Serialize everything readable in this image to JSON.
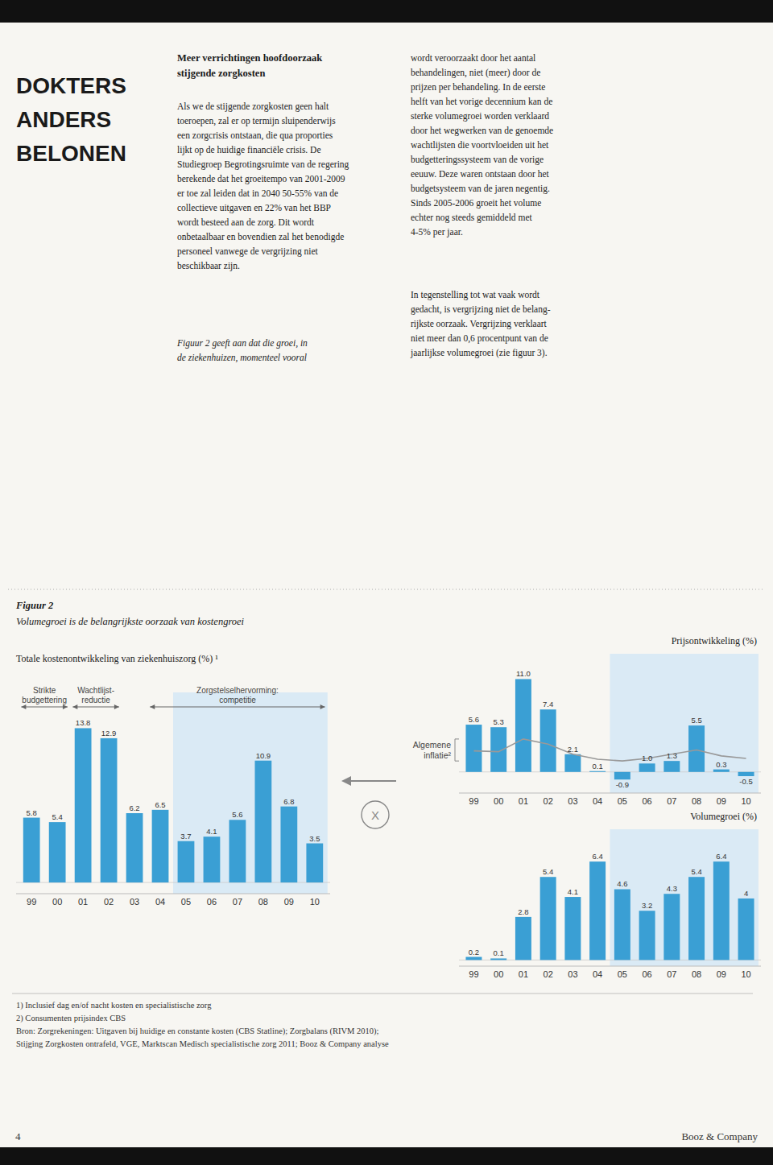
{
  "page": {
    "title": [
      "DOKTERS",
      "ANDERS",
      "BELONEN"
    ],
    "heading": "Meer verrichtingen hoofdoorzaak\nstijgende zorgkosten",
    "paragraphs": [
      "Als we de stijgende zorgkosten geen halt\ntoeroepen, zal er op termijn sluipenderwijs\neen zorgcrisis ontstaan, die qua proporties\nlijkt op de huidige financiële crisis. De\nStudiegroep Begrotingsruimte van de regering\nberekende dat het groeitempo van 2001-2009\ner toe zal leiden dat in 2040 50-55% van de\ncollectieve uitgaven en 22% van het BBP\nwordt besteed aan de zorg. Dit wordt\nonbetaalbaar en bovendien zal het benodigde\npersoneel vanwege de vergrijzing niet\nbeschikbaar zijn.",
      "Figuur 2 geeft aan dat die groei, in\nde ziekenhuizen, momenteel vooral",
      "wordt veroorzaakt door het aantal\nbehandelingen, niet (meer) door de\nprijzen per behandeling. In de eerste\nhelft van het vorige decennium kan de\nsterke volumegroei worden verklaard\ndoor het wegwerken van de genoemde\nwachtlijsten die voortvloeiden uit het\nbudgetteringssysteem van de vorige\neeuuw. Deze waren ontstaan door het\nbudgetsysteem van de jaren negentig.\nSinds 2005-2006 groeit het volume\nechter nog steeds gemiddeld met\n4-5% per jaar.",
      "In tegenstelling tot wat vaak wordt\ngedacht, is vergrijzing niet de belang-\nrijkste oorzaak. Vergrijzing verklaart\nniet meer dan 0,6 procentpunt van de\njaarlijkse volumegroei (zie figuur 3)."
    ],
    "figure_label": "Figuur 2",
    "subtitle": "Volumegroei is de belangrijkste oorzaak van kostengroei",
    "symbol": "X",
    "footnotes": [
      "1) Inclusief dag en/of nacht kosten en specialistische zorg",
      "2) Consumenten prijsindex CBS",
      "Bron: Zorgrekeningen: Uitgaven bij huidige en constante kosten (CBS Statline); Zorgbalans (RIVM 2010);",
      "Stijging Zorgkosten ontrafeld, VGE, Marktscan Medisch specialistische zorg 2011; Booz & Company analyse"
    ],
    "footer": [
      "4",
      "Booz & Company"
    ]
  },
  "chart_data": [
    {
      "type": "bar",
      "title": "Totale kostenontwikkeling van ziekenhuiszorg (%) ¹",
      "categories": [
        "99",
        "00",
        "01",
        "02",
        "03",
        "04",
        "05",
        "06",
        "07",
        "08",
        "09",
        "10"
      ],
      "values": [
        5.8,
        5.4,
        13.8,
        12.9,
        6.2,
        6.5,
        3.7,
        4.1,
        5.6,
        10.9,
        6.8,
        3.5
      ],
      "color": "#3a9fd4",
      "ylim": [
        -1,
        17
      ],
      "data_labels": true,
      "tick_labels": "x",
      "grid": false,
      "annotations": [
        {
          "from": "05",
          "to": "10",
          "color": "#daeaf5"
        },
        {
          "text": "Strikte\nbudgettering",
          "from": "99",
          "to": "00"
        },
        {
          "text": "Wachtlijst-\nreductie",
          "from": "01",
          "to": "02"
        },
        {
          "text": "Zorgstelselhervorming:\ncompetitie",
          "from": "04",
          "to": "10"
        }
      ]
    },
    {
      "type": "bar",
      "title": "Prijsontwikkeling (%)",
      "categories": [
        "99",
        "00",
        "01",
        "02",
        "03",
        "04",
        "05",
        "06",
        "07",
        "08",
        "09",
        "10"
      ],
      "series": [
        {
          "type": "bar",
          "color": "#3a9fd4",
          "data_labels": true,
          "values": [
            5.6,
            5.3,
            11.0,
            7.4,
            2.1,
            0.1,
            -0.9,
            1.0,
            1.3,
            5.5,
            0.3,
            -0.5
          ],
          "value_labels": [
            "5.6",
            "5.3",
            "11.0",
            "7.4",
            "2.1",
            "0.1",
            "-0.9",
            "1.0",
            "1.3",
            "5.5",
            "0.3",
            "-0.5"
          ]
        },
        {
          "type": "line",
          "name": "Algemene\ninflatie²",
          "color": "#999999",
          "values": [
            2.5,
            2.4,
            3.9,
            3.3,
            2.1,
            1.5,
            1.3,
            1.6,
            2.1,
            2.6,
            1.9,
            1.6
          ]
        }
      ],
      "ylim": [
        -2.5,
        14
      ],
      "tick_labels": "x",
      "grid": false,
      "annotations": [
        {
          "from": "05",
          "to": "10",
          "color": "#daeaf5"
        }
      ]
    },
    {
      "type": "bar",
      "title": "Volumegroei (%)",
      "categories": [
        "99",
        "00",
        "01",
        "02",
        "03",
        "04",
        "05",
        "06",
        "07",
        "08",
        "09",
        "10"
      ],
      "values": [
        0.2,
        0.1,
        2.8,
        5.4,
        4.1,
        6.4,
        4.6,
        3.2,
        4.3,
        5.4,
        6.4,
        4.0
      ],
      "color": "#3a9fd4",
      "ylim": [
        -0.4,
        8.5
      ],
      "data_labels": true,
      "tick_labels": "x",
      "grid": false,
      "annotations": [
        {
          "from": "05",
          "to": "10",
          "color": "#daeaf5"
        }
      ]
    }
  ]
}
